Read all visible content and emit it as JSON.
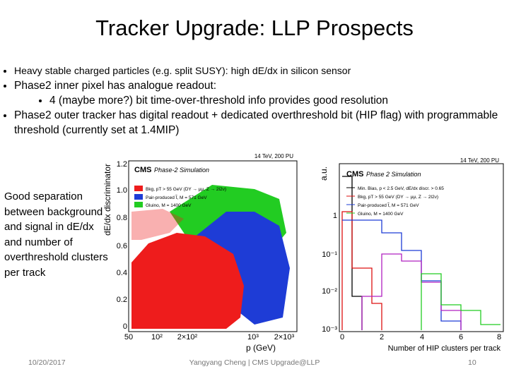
{
  "title": "Tracker Upgrade: LLP Prospects",
  "bullets": [
    "Heavy stable charged particles (e.g. split SUSY): high dE/dx in silicon sensor",
    "Phase2 inner pixel has analogue readout:",
    "4 (maybe more?) bit time-over-threshold info provides good resolution",
    "Phase2 outer tracker has digital readout + dedicated overthreshold bit (HIP flag) with programmable threshold (currently set at 1.4MIP)"
  ],
  "side_note": "Good separation between background and signal in dE/dx and number of overthreshold clusters per track",
  "figures": [
    {
      "experiment": "CMS",
      "status": "Phase-2 Simulation",
      "conditions": "14 TeV, 200 PU",
      "y_label": "dE/dx discriminator",
      "x_label": "p (GeV)",
      "yticks": [
        "1.2",
        "1.0",
        "0.8",
        "0.6",
        "0.4",
        "0.2",
        "0"
      ],
      "xticks": [
        "50",
        "10²",
        "2×10²",
        "10³",
        "2×10³"
      ],
      "legend": [
        "Bkg, pT > 55 GeV (DY → μμ, Z → 2l2ν)",
        "Pair-produced t̃, M = 571 GeV",
        "Gluino, M = 1400 GeV"
      ]
    },
    {
      "experiment": "CMS",
      "status": "Phase 2 Simulation",
      "conditions": "14 TeV, 200 PU",
      "y_label": "a.u.",
      "x_label": "Number of HIP clusters per track",
      "yticks": [
        "1",
        "10⁻¹",
        "10⁻²",
        "10⁻³"
      ],
      "xticks": [
        "0",
        "2",
        "4",
        "6",
        "8"
      ],
      "legend": [
        "Min. Bias, p < 2.5 GeV, dE/dx discr. > 0.65",
        "Bkg, pT > 55 GeV (DY → μμ, Z → 2l2ν)",
        "Pair-produced t̃, M = 571 GeV",
        "Gluino, M = 1400 GeV"
      ]
    }
  ],
  "footer": {
    "date": "10/20/2017",
    "author": "Yangyang Cheng | CMS Upgrade@LLP",
    "page": "10"
  }
}
